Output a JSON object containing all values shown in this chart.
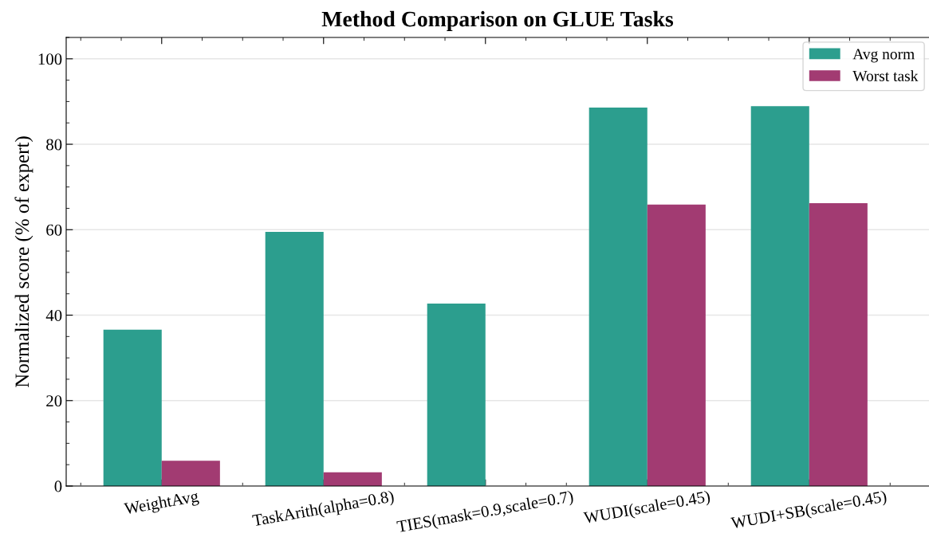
{
  "chart_data": {
    "type": "bar",
    "title": "Method Comparison on GLUE Tasks",
    "ylabel": "Normalized score (% of expert)",
    "categories": [
      "WeightAvg",
      "TaskArith(alpha=0.8)",
      "TIES(mask=0.9,scale=0.7)",
      "WUDI(scale=0.45)",
      "WUDI+SB(scale=0.45)"
    ],
    "series": [
      {
        "name": "Avg norm",
        "color": "#2c9e8e",
        "values": [
          36.6,
          59.5,
          42.7,
          88.6,
          88.9
        ]
      },
      {
        "name": "Worst task",
        "color": "#a23b72",
        "values": [
          5.9,
          3.2,
          0,
          65.9,
          66.2
        ]
      }
    ],
    "ylim": [
      0,
      105
    ],
    "yticks": [
      0,
      20,
      40,
      60,
      80,
      100
    ],
    "grid": "y",
    "legend": "top right"
  }
}
